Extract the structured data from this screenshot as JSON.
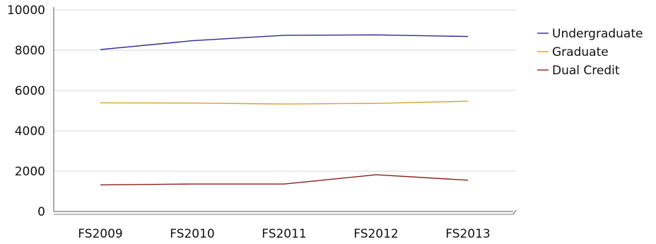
{
  "chart_data": {
    "type": "line",
    "title": "",
    "xlabel": "",
    "ylabel": "",
    "categories": [
      "FS2009",
      "FS2010",
      "FS2011",
      "FS2012",
      "FS2013"
    ],
    "ylim": [
      0,
      10000
    ],
    "yticks": [
      0,
      2000,
      4000,
      6000,
      8000,
      10000
    ],
    "grid": true,
    "legend": "right",
    "series": [
      {
        "name": "Undergraduate",
        "color": "#2a2a8c",
        "values": [
          8030,
          8470,
          8740,
          8760,
          8680
        ]
      },
      {
        "name": "Graduate",
        "color": "#d9a030",
        "values": [
          5390,
          5380,
          5330,
          5360,
          5470
        ]
      },
      {
        "name": "Dual Credit",
        "color": "#8b2020",
        "values": [
          1320,
          1360,
          1360,
          1820,
          1550
        ]
      }
    ]
  }
}
